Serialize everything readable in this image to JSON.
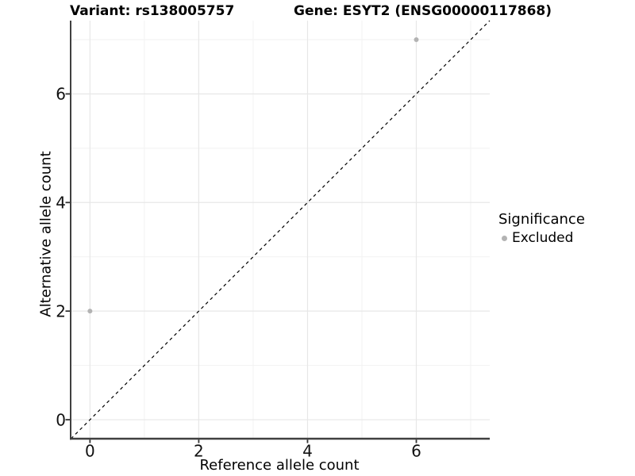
{
  "chart_data": {
    "type": "scatter",
    "title_left": "Variant: rs138005757",
    "title_right": "Gene: ESYT2 (ENSG00000117868)",
    "xlabel": "Reference allele count",
    "ylabel": "Alternative allele count",
    "xlim": [
      -0.37,
      7.35
    ],
    "ylim": [
      -0.35,
      7.35
    ],
    "x_ticks": {
      "major": [
        0,
        2,
        4,
        6
      ],
      "minor": [
        1,
        3,
        5,
        7
      ]
    },
    "y_ticks": {
      "major": [
        0,
        2,
        4,
        6
      ],
      "minor": [
        1,
        3,
        5,
        7
      ]
    },
    "grid": "major and minor gridlines",
    "identity_line": {
      "type": "y=x",
      "style": "dashed",
      "color": "#000000"
    },
    "series": [
      {
        "name": "Excluded",
        "color": "#b3b3b3",
        "points": [
          {
            "x": 0,
            "y": 2
          },
          {
            "x": 6,
            "y": 7
          }
        ]
      }
    ],
    "legend": {
      "title": "Significance",
      "position": "right",
      "items": [
        {
          "label": "Excluded",
          "color": "#b3b3b3"
        }
      ]
    },
    "style": {
      "background": "#ffffff",
      "axis_line_color": "#404040",
      "tick_color": "#333333",
      "tick_label_color": "#111111",
      "grid_major_color": "#e7e7e7",
      "grid_minor_color": "#f2f2f2",
      "text_color": "#000000"
    }
  }
}
